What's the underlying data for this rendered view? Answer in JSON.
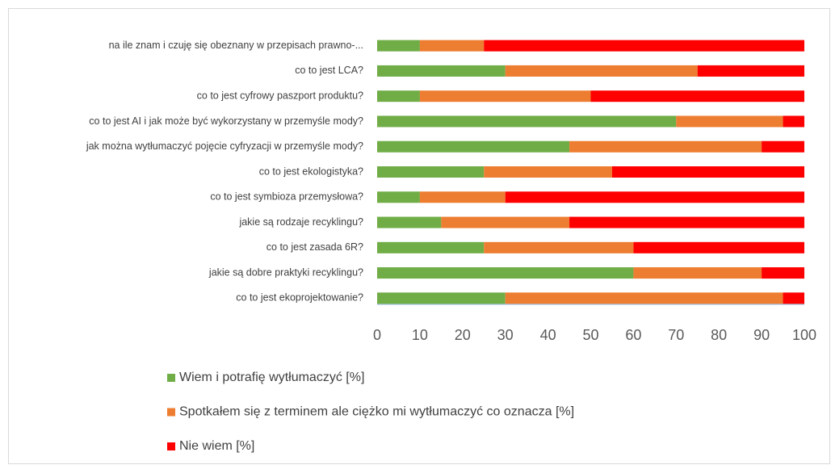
{
  "chart_data": {
    "type": "stacked-barh",
    "categories": [
      "na ile znam i czuję się obeznany w przepisach prawno-...",
      "co to jest LCA?",
      "co to jest cyfrowy paszport produktu?",
      "co to jest AI i jak może być wykorzystany w przemyśle mody?",
      "jak można wytłumaczyć pojęcie cyfryzacji w przemyśle mody?",
      "co to jest ekologistyka?",
      "co to jest symbioza przemysłowa?",
      "jakie są rodzaje recyklingu?",
      "co to jest zasada 6R?",
      "jakie są dobre praktyki recyklingu?",
      "co to jest ekoprojektowanie?"
    ],
    "series": [
      {
        "name": "Wiem i potrafię wytłumaczyć [%]",
        "color": "#70ad47",
        "values": [
          10,
          30,
          10,
          70,
          45,
          25,
          10,
          15,
          25,
          60,
          30
        ]
      },
      {
        "name": "Spotkałem się z terminem ale ciężko mi wytłumaczyć co oznacza [%]",
        "color": "#ed7d31",
        "values": [
          15,
          45,
          40,
          25,
          45,
          30,
          20,
          30,
          35,
          30,
          65
        ]
      },
      {
        "name": "Nie wiem [%]",
        "color": "#ff0000",
        "values": [
          75,
          25,
          50,
          5,
          10,
          45,
          70,
          55,
          40,
          10,
          5
        ]
      }
    ],
    "xlim": [
      0,
      100
    ],
    "xticks": [
      0,
      10,
      20,
      30,
      40,
      50,
      60,
      70,
      80,
      90,
      100
    ],
    "grid": false
  }
}
